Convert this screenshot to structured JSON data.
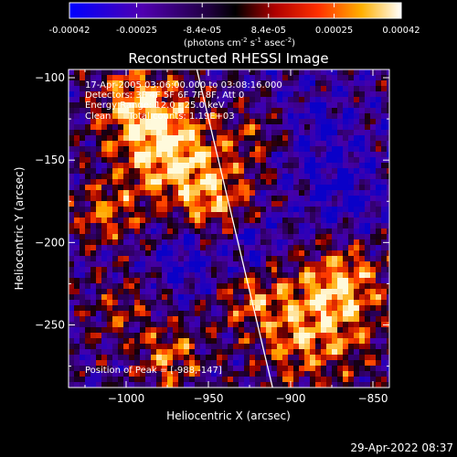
{
  "window": {
    "timestamp": "29-Apr-2022 08:37"
  },
  "colorbar": {
    "tick_labels": [
      "-0.00042",
      "-0.00025",
      "-8.4e-05",
      "8.4e-05",
      "0.00025",
      "0.00042"
    ],
    "tick_values": [
      -0.00042,
      -0.00025,
      -8.4e-05,
      8.4e-05,
      0.00025,
      0.00042
    ],
    "range": [
      -0.00042,
      0.00042
    ],
    "units_line1": "(photons cm",
    "units_sup1": "-2",
    "units_mid": " s",
    "units_sup2": "-1",
    "units_line2": " asec",
    "units_sup3": "-2",
    "units_end": ")",
    "colors": [
      "#0000ff",
      "#4a00a0",
      "#000000",
      "#b00000",
      "#ff6000",
      "#ffd000",
      "#ffffff"
    ]
  },
  "annotations": {
    "time_range": "17-Apr-2005 03:06:00.000 to 03:08:16.000",
    "detectors": "Detectors: 3F 4F 5F 6F 7F 8F, Att 0",
    "energy": "Energy Range: 12.0 - 25.0 keV",
    "clean": "Clean      Total counts: 1.19E+03",
    "peak": "Position of Peak = [-988,-147]"
  },
  "chart_data": {
    "type": "heatmap",
    "title": "Reconstructed RHESSI Image",
    "xlabel": "Heliocentric X (arcsec)",
    "ylabel": "Heliocentric Y (arcsec)",
    "xlim": [
      -1035,
      -840
    ],
    "ylim": [
      -288,
      -95
    ],
    "x_ticks": [
      -1000,
      -950,
      -900,
      -850
    ],
    "x_tick_labels": [
      "−1000",
      "−950",
      "−900",
      "−850"
    ],
    "y_ticks": [
      -250,
      -200,
      -150,
      -100
    ],
    "y_tick_labels": [
      "−250",
      "−200",
      "−150",
      "−100"
    ],
    "peak_position": [
      -988,
      -147
    ],
    "limb_line": [
      [
        -957,
        -95
      ],
      [
        -911,
        -288
      ]
    ]
  }
}
